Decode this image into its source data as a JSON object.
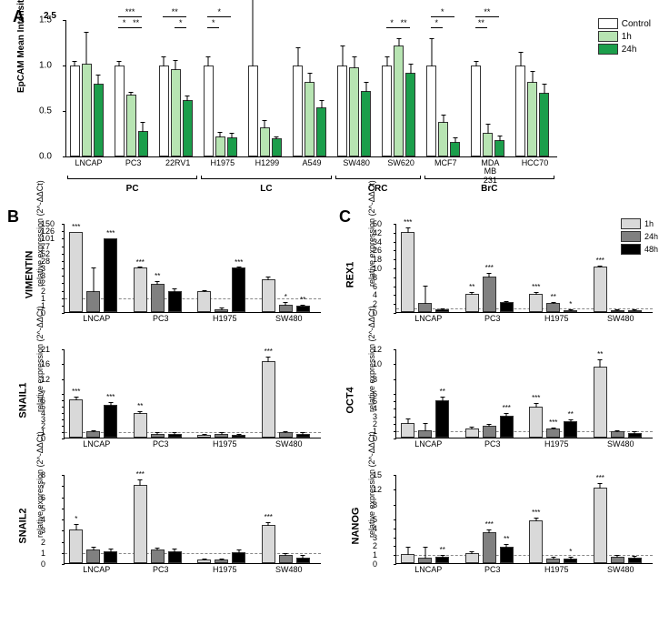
{
  "labels": {
    "panelA": "A",
    "panelB": "B",
    "panelC": "C",
    "panelA_y": "EpCAM Mean Intensity Fluorescence",
    "rel_expr": "relative expression (2^-ΔΔCt)"
  },
  "colors": {
    "control": "#ffffff",
    "oneh": "#b7e4b2",
    "tf": "#1b9e4b",
    "bc_1h": "#d9d9d9",
    "bc_24h": "#808080",
    "bc_48h": "#000000",
    "border": "#333333",
    "dash": "#888888",
    "bg": "#ffffff"
  },
  "panelA": {
    "ylim": [
      0,
      1.5
    ],
    "ytick_step": 0.5,
    "upper_scale_label": "2.5",
    "legend": [
      {
        "label": "Control",
        "key": "control"
      },
      {
        "label": "1h",
        "key": "oneh"
      },
      {
        "label": "24h",
        "key": "tf"
      }
    ],
    "cell_lines": [
      "LNCAP",
      "PC3",
      "22RV1",
      "H1975",
      "H1299",
      "A549",
      "SW480",
      "SW620",
      "MCF7",
      "MDA\nMB\n231",
      "HCC70"
    ],
    "cancer_groups": [
      {
        "label": "PC",
        "from": 0,
        "to": 2
      },
      {
        "label": "LC",
        "from": 3,
        "to": 5
      },
      {
        "label": "CRC",
        "from": 6,
        "to": 7
      },
      {
        "label": "BrC",
        "from": 8,
        "to": 10
      }
    ],
    "values": [
      {
        "c": [
          1.0,
          0.05
        ],
        "h1": [
          1.02,
          0.35
        ],
        "h24": [
          0.8,
          0.1
        ]
      },
      {
        "c": [
          1.0,
          0.05
        ],
        "h1": [
          0.68,
          0.03
        ],
        "h24": [
          0.28,
          0.1
        ]
      },
      {
        "c": [
          1.0,
          0.1
        ],
        "h1": [
          0.96,
          0.1
        ],
        "h24": [
          0.62,
          0.05
        ]
      },
      {
        "c": [
          1.0,
          0.1
        ],
        "h1": [
          0.22,
          0.05
        ],
        "h24": [
          0.21,
          0.05
        ]
      },
      {
        "c": [
          1.0,
          1.4
        ],
        "h1": [
          0.32,
          0.08
        ],
        "h24": [
          0.2,
          0.02
        ]
      },
      {
        "c": [
          1.0,
          0.2
        ],
        "h1": [
          0.82,
          0.1
        ],
        "h24": [
          0.54,
          0.08
        ]
      },
      {
        "c": [
          1.0,
          0.22
        ],
        "h1": [
          0.98,
          0.12
        ],
        "h24": [
          0.72,
          0.1
        ]
      },
      {
        "c": [
          1.0,
          0.1
        ],
        "h1": [
          1.22,
          0.08
        ],
        "h24": [
          0.92,
          0.1
        ]
      },
      {
        "c": [
          1.0,
          0.3
        ],
        "h1": [
          0.38,
          0.08
        ],
        "h24": [
          0.16,
          0.05
        ]
      },
      {
        "c": [
          1.0,
          0.05
        ],
        "h1": [
          0.26,
          0.1
        ],
        "h24": [
          0.18,
          0.05
        ]
      },
      {
        "c": [
          1.0,
          0.15
        ],
        "h1": [
          0.82,
          0.12
        ],
        "h24": [
          0.7,
          0.1
        ]
      }
    ],
    "sigs": [
      {
        "idx": 1,
        "from": "c",
        "to": "h1",
        "lvl": 1,
        "txt": "*"
      },
      {
        "idx": 1,
        "from": "h1",
        "to": "h24",
        "lvl": 1,
        "txt": "**"
      },
      {
        "idx": 1,
        "from": "c",
        "to": "h24",
        "lvl": 2,
        "txt": "***"
      },
      {
        "idx": 2,
        "from": "c",
        "to": "h24",
        "lvl": 2,
        "txt": "**"
      },
      {
        "idx": 2,
        "from": "h1",
        "to": "h24",
        "lvl": 1,
        "txt": "*"
      },
      {
        "idx": 3,
        "from": "c",
        "to": "h1",
        "lvl": 1,
        "txt": "*"
      },
      {
        "idx": 3,
        "from": "c",
        "to": "h24",
        "lvl": 2,
        "txt": "*"
      },
      {
        "idx": 7,
        "from": "c",
        "to": "h1",
        "lvl": 1,
        "txt": "*"
      },
      {
        "idx": 7,
        "from": "h1",
        "to": "h24",
        "lvl": 1,
        "txt": "**"
      },
      {
        "idx": 8,
        "from": "c",
        "to": "h1",
        "lvl": 1,
        "txt": "*"
      },
      {
        "idx": 8,
        "from": "c",
        "to": "h24",
        "lvl": 2,
        "txt": "*"
      },
      {
        "idx": 9,
        "from": "c",
        "to": "h1",
        "lvl": 1,
        "txt": "**"
      },
      {
        "idx": 9,
        "from": "c",
        "to": "h24",
        "lvl": 2,
        "txt": "**"
      }
    ]
  },
  "panelsBC": {
    "cell_lines": [
      "LNCAP",
      "PC3",
      "H1975",
      "SW480"
    ],
    "legend": [
      {
        "label": "1h",
        "key": "bc_1h"
      },
      {
        "label": "24h",
        "key": "bc_24h"
      },
      {
        "label": "48h",
        "key": "bc_48h"
      }
    ],
    "B": [
      {
        "gene": "VIMENTIN",
        "segments": [
          [
            0,
            3,
            6
          ],
          [
            3,
            150,
            6
          ]
        ],
        "values": [
          {
            "c": "LNCAP",
            "v": [
              120,
              0,
              "***"
            ],
            "v2": [
              1.4,
              1.6,
              ""
            ],
            "v3": [
              100,
              0,
              "***"
            ]
          },
          {
            "c": "PC3",
            "v": [
              3.0,
              0.2,
              "***"
            ],
            "v2": [
              1.9,
              0.2,
              "**"
            ],
            "v3": [
              1.4,
              0.2,
              ""
            ]
          },
          {
            "c": "H1975",
            "v": [
              1.4,
              0.1,
              ""
            ],
            "v2": [
              0.2,
              0.1,
              ""
            ],
            "v3": [
              3.0,
              0.2,
              "***"
            ]
          },
          {
            "c": "SW480",
            "v": [
              2.2,
              0.2,
              ""
            ],
            "v2": [
              0.5,
              0.2,
              "*"
            ],
            "v3": [
              0.4,
              0.1,
              "**"
            ]
          }
        ]
      },
      {
        "gene": "SNAIL1",
        "segments": [
          [
            0,
            7,
            7
          ],
          [
            7,
            21,
            3
          ]
        ],
        "values": [
          {
            "c": "LNCAP",
            "v": [
              6.0,
              0.5,
              "***"
            ],
            "v2": [
              1.0,
              0.2,
              ""
            ],
            "v3": [
              5.2,
              0.4,
              "***"
            ]
          },
          {
            "c": "PC3",
            "v": [
              3.8,
              0.4,
              "**"
            ],
            "v2": [
              0.6,
              0.2,
              ""
            ],
            "v3": [
              0.6,
              0.2,
              ""
            ]
          },
          {
            "c": "H1975",
            "v": [
              0.5,
              0.1,
              ""
            ],
            "v2": [
              0.6,
              0.2,
              ""
            ],
            "v3": [
              0.4,
              0.1,
              ""
            ]
          },
          {
            "c": "SW480",
            "v": [
              17.0,
              1.5,
              "***"
            ],
            "v2": [
              0.8,
              0.2,
              ""
            ],
            "v3": [
              0.6,
              0.2,
              ""
            ]
          }
        ]
      },
      {
        "gene": "SNAIL2",
        "segments": [
          [
            0,
            8,
            8
          ]
        ],
        "values": [
          {
            "c": "LNCAP",
            "v": [
              3.0,
              0.5,
              "*"
            ],
            "v2": [
              1.2,
              0.3,
              ""
            ],
            "v3": [
              1.1,
              0.2,
              ""
            ]
          },
          {
            "c": "PC3",
            "v": [
              7.0,
              0.5,
              "***"
            ],
            "v2": [
              1.2,
              0.2,
              ""
            ],
            "v3": [
              1.1,
              0.2,
              ""
            ]
          },
          {
            "c": "H1975",
            "v": [
              0.3,
              0.1,
              ""
            ],
            "v2": [
              0.3,
              0.1,
              ""
            ],
            "v3": [
              1.0,
              0.2,
              ""
            ]
          },
          {
            "c": "SW480",
            "v": [
              3.4,
              0.3,
              "***"
            ],
            "v2": [
              0.7,
              0.2,
              ""
            ],
            "v3": [
              0.5,
              0.2,
              ""
            ]
          }
        ]
      }
    ],
    "C": [
      {
        "gene": "REX1",
        "segments": [
          [
            0,
            10,
            5
          ],
          [
            10,
            50,
            5
          ]
        ],
        "values": [
          {
            "c": "LNCAP",
            "v": [
              42,
              4,
              "***"
            ],
            "v2": [
              2.0,
              4.0,
              ""
            ],
            "v3": [
              0.6,
              0.2,
              ""
            ]
          },
          {
            "c": "PC3",
            "v": [
              4.0,
              0.5,
              "**"
            ],
            "v2": [
              8.0,
              0.8,
              "***"
            ],
            "v3": [
              2.2,
              0.3,
              ""
            ]
          },
          {
            "c": "H1975",
            "v": [
              4.0,
              0.4,
              "***"
            ],
            "v2": [
              2.0,
              0.3,
              "**"
            ],
            "v3": [
              0.5,
              0.2,
              "*"
            ]
          },
          {
            "c": "SW480",
            "v": [
              10.5,
              1.0,
              "***"
            ],
            "v2": [
              0.5,
              0.2,
              ""
            ],
            "v3": [
              0.4,
              0.2,
              ""
            ]
          }
        ]
      },
      {
        "gene": "OCT4",
        "segments": [
          [
            0,
            6,
            6
          ],
          [
            6,
            12,
            3
          ]
        ],
        "values": [
          {
            "c": "LNCAP",
            "v": [
              2.0,
              0.6,
              ""
            ],
            "v2": [
              1.0,
              1.0,
              ""
            ],
            "v3": [
              5.0,
              0.5,
              "**"
            ]
          },
          {
            "c": "PC3",
            "v": [
              1.2,
              0.3,
              ""
            ],
            "v2": [
              1.6,
              0.3,
              ""
            ],
            "v3": [
              3.0,
              0.3,
              "***"
            ]
          },
          {
            "c": "H1975",
            "v": [
              4.2,
              0.4,
              "***"
            ],
            "v2": [
              1.2,
              0.2,
              "***"
            ],
            "v3": [
              2.2,
              0.3,
              "**"
            ]
          },
          {
            "c": "SW480",
            "v": [
              9.5,
              1.0,
              "**"
            ],
            "v2": [
              0.8,
              0.2,
              ""
            ],
            "v3": [
              0.6,
              0.2,
              ""
            ]
          }
        ]
      },
      {
        "gene": "NANOG",
        "segments": [
          [
            0,
            5,
            5
          ],
          [
            5,
            15,
            3
          ]
        ],
        "values": [
          {
            "c": "LNCAP",
            "v": [
              1.0,
              0.8,
              ""
            ],
            "v2": [
              0.6,
              1.2,
              ""
            ],
            "v3": [
              0.7,
              0.2,
              "**"
            ]
          },
          {
            "c": "PC3",
            "v": [
              1.1,
              0.2,
              ""
            ],
            "v2": [
              3.5,
              0.3,
              "***"
            ],
            "v3": [
              1.8,
              0.3,
              "**"
            ]
          },
          {
            "c": "H1975",
            "v": [
              4.8,
              0.5,
              "***"
            ],
            "v2": [
              0.5,
              0.2,
              ""
            ],
            "v3": [
              0.5,
              0.2,
              "*"
            ]
          },
          {
            "c": "SW480",
            "v": [
              12.0,
              1.0,
              "***"
            ],
            "v2": [
              0.7,
              0.2,
              ""
            ],
            "v3": [
              0.6,
              0.2,
              ""
            ]
          }
        ]
      }
    ]
  }
}
